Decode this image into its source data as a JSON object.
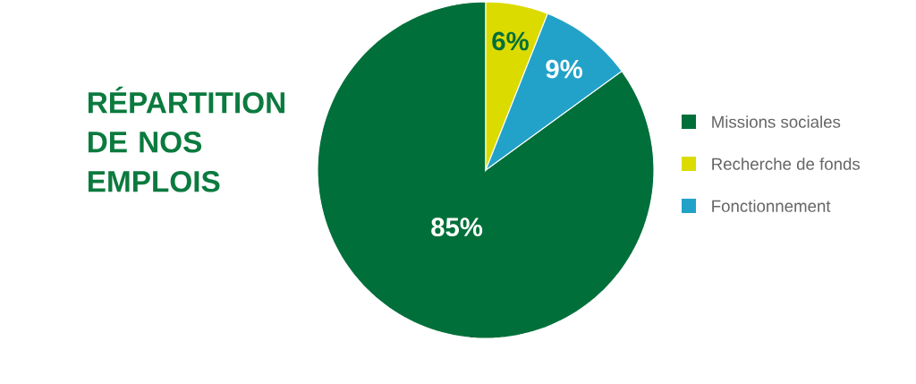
{
  "chart_data": {
    "type": "pie",
    "title": "RÉPARTITION DE NOS EMPLOIS",
    "categories": [
      "Missions sociales",
      "Recherche de fonds",
      "Fonctionnement"
    ],
    "values": [
      85,
      6,
      9
    ],
    "colors": [
      "#006f3a",
      "#dcdb00",
      "#22a2c8"
    ],
    "value_labels": [
      "85%",
      "6%",
      "9%"
    ],
    "legend": "right"
  }
}
